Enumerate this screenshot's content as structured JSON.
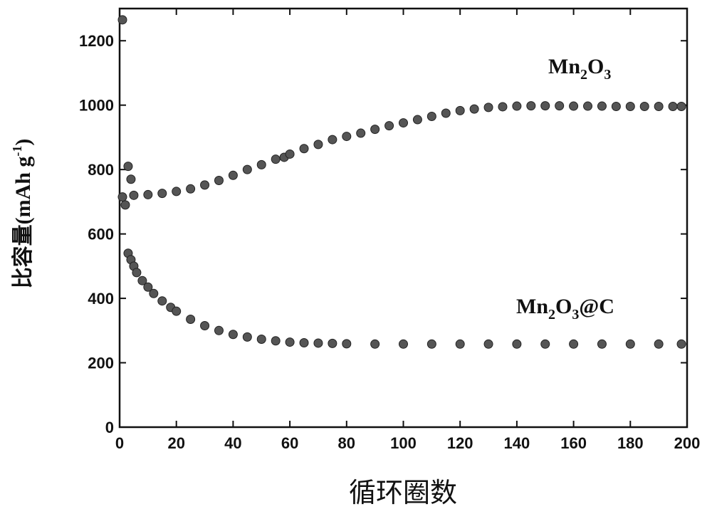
{
  "chart_data": {
    "type": "scatter",
    "xlabel": "循环圈数",
    "ylabel": "比容量(mAh g-1)",
    "ylabel_parts": {
      "main": "比容量(mAh g",
      "sup": "-1",
      "close": ")"
    },
    "xlim": [
      0,
      200
    ],
    "ylim": [
      0,
      1300
    ],
    "xticks": [
      0,
      20,
      40,
      60,
      80,
      100,
      120,
      140,
      160,
      180,
      200
    ],
    "yticks": [
      0,
      200,
      400,
      600,
      800,
      1000,
      1200
    ],
    "grid": false,
    "marker_color": "#555555",
    "series": [
      {
        "name": "Mn2O3",
        "label_parts": [
          "Mn",
          "2",
          "O",
          "3",
          ""
        ],
        "x": [
          1,
          2,
          3,
          4,
          5,
          10,
          15,
          20,
          25,
          30,
          35,
          40,
          45,
          50,
          55,
          58,
          60,
          65,
          70,
          75,
          80,
          85,
          90,
          95,
          100,
          105,
          110,
          115,
          120,
          125,
          130,
          135,
          140,
          145,
          150,
          155,
          160,
          165,
          170,
          175,
          180,
          185,
          190,
          195,
          198
        ],
        "y": [
          1265,
          690,
          810,
          770,
          720,
          722,
          726,
          732,
          740,
          752,
          766,
          782,
          800,
          815,
          832,
          838,
          848,
          865,
          878,
          893,
          903,
          913,
          925,
          936,
          945,
          955,
          965,
          975,
          983,
          988,
          993,
          995,
          997,
          998,
          998,
          998,
          997,
          997,
          997,
          996,
          996,
          996,
          996,
          996,
          996
        ]
      },
      {
        "name": "Mn2O3@C",
        "label_parts": [
          "Mn",
          "2",
          "O",
          "3",
          "@C"
        ],
        "x": [
          1,
          3,
          4,
          5,
          6,
          8,
          10,
          12,
          15,
          18,
          20,
          25,
          30,
          35,
          40,
          45,
          50,
          55,
          60,
          65,
          70,
          75,
          80,
          90,
          100,
          110,
          120,
          130,
          140,
          150,
          160,
          170,
          180,
          190,
          198
        ],
        "y": [
          715,
          540,
          520,
          500,
          480,
          455,
          435,
          415,
          392,
          372,
          360,
          335,
          315,
          300,
          288,
          280,
          273,
          268,
          264,
          262,
          261,
          260,
          259,
          258,
          258,
          258,
          258,
          258,
          258,
          258,
          258,
          258,
          258,
          258,
          258
        ]
      }
    ]
  }
}
